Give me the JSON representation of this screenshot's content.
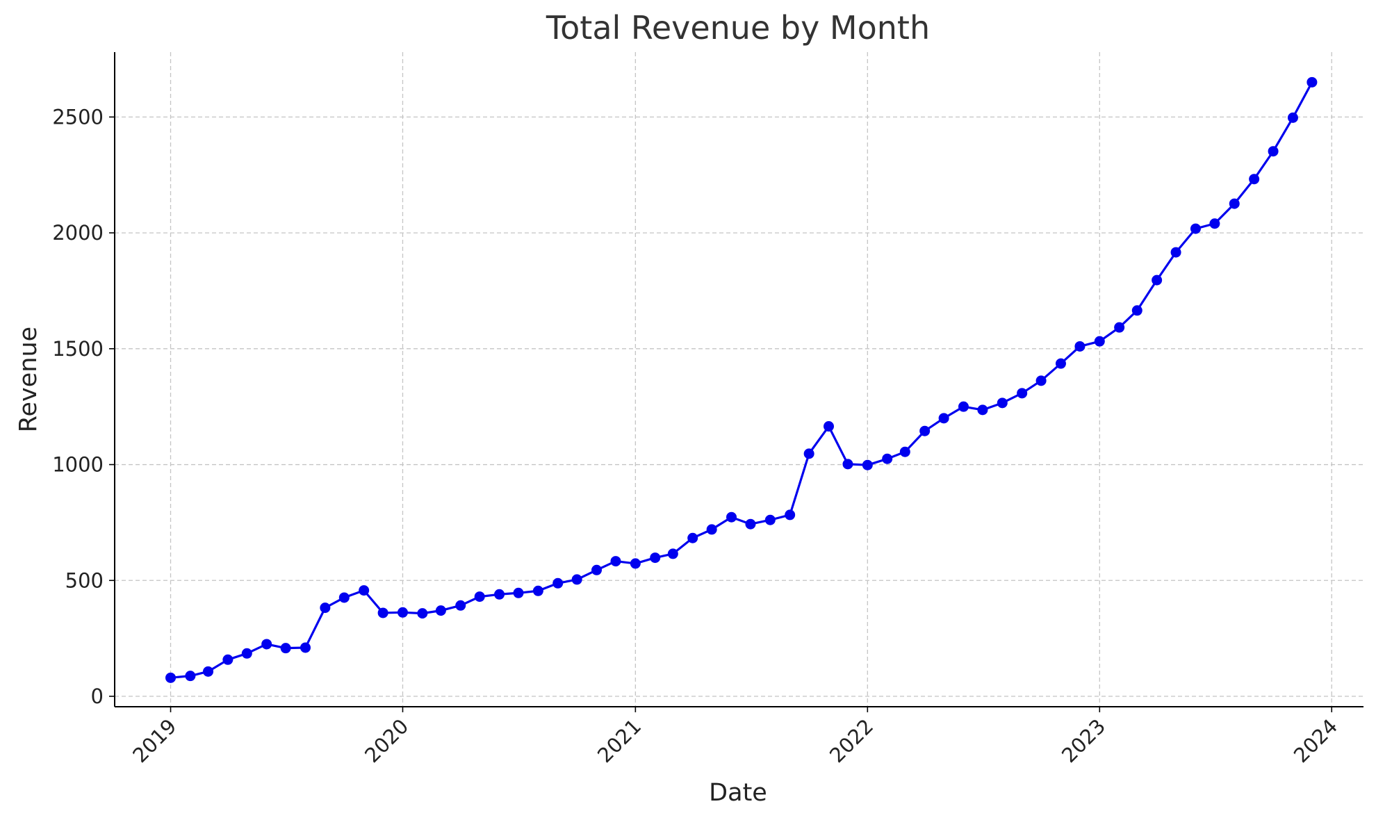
{
  "chart_data": {
    "type": "line",
    "title": "Total Revenue by Month",
    "xlabel": "Date",
    "ylabel": "Revenue",
    "x_ticks": [
      "2019",
      "2020",
      "2021",
      "2022",
      "2023",
      "2024"
    ],
    "y_ticks": [
      0,
      500,
      1000,
      1500,
      2000,
      2500
    ],
    "ylim": [
      -45,
      2780
    ],
    "xlim": [
      "2018-10-05",
      "2024-02-20"
    ],
    "grid": true,
    "marker": "circle",
    "line_color": "#0000ee",
    "series": [
      {
        "x": [
          "2019-01-01",
          "2019-02-01",
          "2019-03-01",
          "2019-04-01",
          "2019-05-01",
          "2019-06-01",
          "2019-07-01",
          "2019-08-01",
          "2019-09-01",
          "2019-10-01",
          "2019-11-01",
          "2019-12-01",
          "2020-01-01",
          "2020-02-01",
          "2020-03-01",
          "2020-04-01",
          "2020-05-01",
          "2020-06-01",
          "2020-07-01",
          "2020-08-01",
          "2020-09-01",
          "2020-10-01",
          "2020-11-01",
          "2020-12-01",
          "2021-01-01",
          "2021-02-01",
          "2021-03-01",
          "2021-04-01",
          "2021-05-01",
          "2021-06-01",
          "2021-07-01",
          "2021-08-01",
          "2021-09-01",
          "2021-10-01",
          "2021-11-01",
          "2021-12-01",
          "2022-01-01",
          "2022-02-01",
          "2022-03-01",
          "2022-04-01",
          "2022-05-01",
          "2022-06-01",
          "2022-07-01",
          "2022-08-01",
          "2022-09-01",
          "2022-10-01",
          "2022-11-01",
          "2022-12-01",
          "2023-01-01",
          "2023-02-01",
          "2023-03-01",
          "2023-04-01",
          "2023-05-01",
          "2023-06-01",
          "2023-07-01",
          "2023-08-01",
          "2023-09-01",
          "2023-10-01",
          "2023-11-01",
          "2023-12-01"
        ],
        "values": [
          80,
          88,
          107,
          158,
          185,
          225,
          208,
          210,
          382,
          426,
          457,
          360,
          362,
          358,
          370,
          392,
          430,
          440,
          446,
          455,
          488,
          504,
          545,
          583,
          573,
          598,
          615,
          683,
          720,
          773,
          743,
          761,
          783,
          1047,
          1165,
          1002,
          998,
          1025,
          1055,
          1145,
          1200,
          1250,
          1236,
          1266,
          1308,
          1362,
          1436,
          1510,
          1532,
          1592,
          1665,
          1796,
          1916,
          2018,
          2040,
          2126,
          2232,
          2352,
          2497,
          2650
        ]
      }
    ]
  }
}
